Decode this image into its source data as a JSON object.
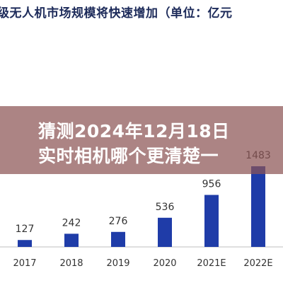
{
  "chart_data": {
    "type": "bar",
    "title": "级无人机市场规模将快速增加（单位：亿元",
    "categories": [
      "2017",
      "2018",
      "2019",
      "2020",
      "2021E",
      "2022E"
    ],
    "values": [
      127,
      242,
      276,
      536,
      956,
      1483
    ],
    "xlabel": "",
    "ylabel": "",
    "ylim": [
      0,
      1600
    ],
    "grid": false,
    "legend": "none",
    "colors": {
      "bar": "#1f3ca8",
      "axis": "#bfbfbf",
      "title": "#1d2b5a"
    }
  },
  "overlay": {
    "line1": "猜测2024年12月18日",
    "line2": "实时相机哪个更清楚一",
    "background": "#8c5454"
  }
}
